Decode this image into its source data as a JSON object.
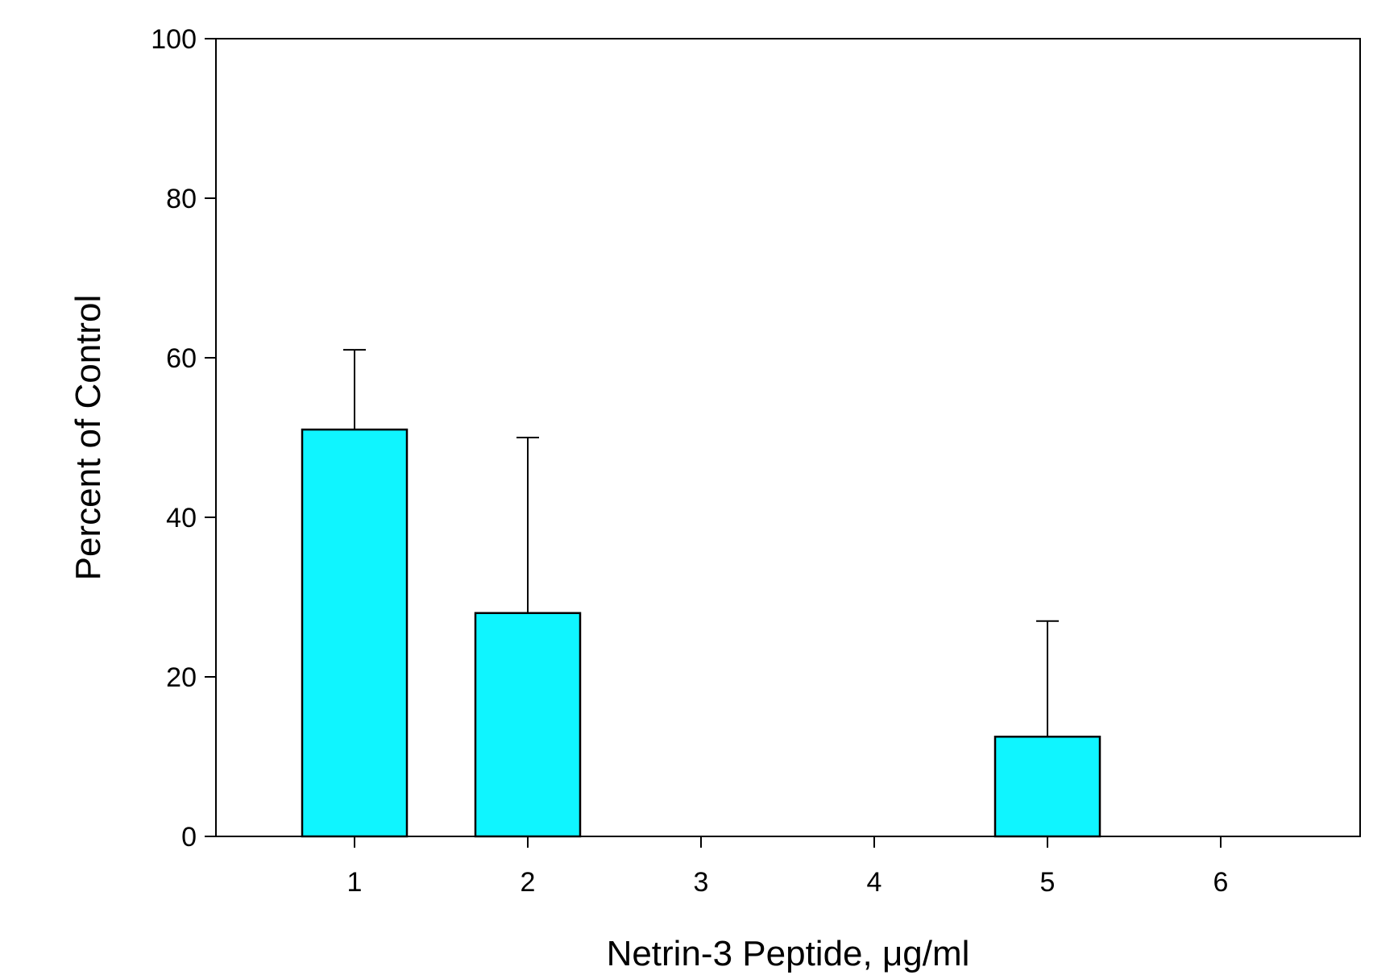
{
  "chart_data": {
    "type": "bar",
    "title": "",
    "xlabel": "Netrin-3 Peptide, μg/ml",
    "ylabel": "Percent of Control",
    "categories": [
      "1",
      "2",
      "3",
      "4",
      "5",
      "6"
    ],
    "values": [
      51,
      28,
      0,
      0,
      12.5,
      0
    ],
    "error_plus": [
      10,
      22,
      0,
      0,
      14.5,
      0
    ],
    "ylim": [
      0,
      100
    ],
    "yticks": [
      "0",
      "20",
      "40",
      "60",
      "80",
      "100"
    ],
    "grid": false,
    "legend": "none",
    "bar_color": "#0ff5ff",
    "edge_color": "#000000"
  }
}
